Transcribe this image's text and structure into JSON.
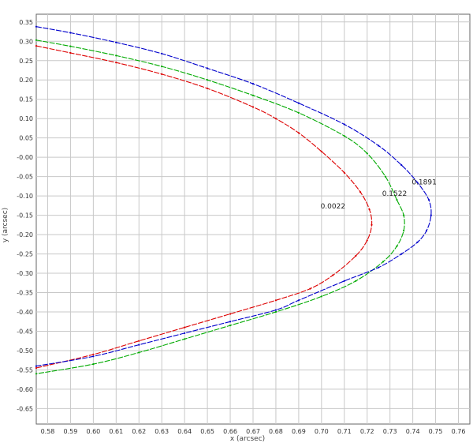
{
  "chart_data": {
    "type": "line",
    "title": "",
    "xlabel": "x (arcsec)",
    "ylabel": "y (arcsec)",
    "xlim": [
      0.575,
      0.765
    ],
    "ylim": [
      -0.69,
      0.37
    ],
    "grid": true,
    "legend": "none",
    "x_ticks": [
      0.58,
      0.59,
      0.6,
      0.61,
      0.62,
      0.63,
      0.64,
      0.65,
      0.66,
      0.67,
      0.68,
      0.69,
      0.7,
      0.71,
      0.72,
      0.73,
      0.74,
      0.75,
      0.76
    ],
    "x_tick_labels": [
      "0.58",
      "0.59",
      "0.60",
      "0.61",
      "0.62",
      "0.63",
      "0.64",
      "0.65",
      "0.66",
      "0.67",
      "0.68",
      "0.69",
      "0.70",
      "0.71",
      "0.72",
      "0.73",
      "0.74",
      "0.75",
      "0.76"
    ],
    "y_ticks": [
      0.35,
      0.3,
      0.25,
      0.2,
      0.15,
      0.1,
      0.05,
      0.0,
      -0.05,
      -0.1,
      -0.15,
      -0.2,
      -0.25,
      -0.3,
      -0.35,
      -0.4,
      -0.45,
      -0.5,
      -0.55,
      -0.6,
      -0.65
    ],
    "y_tick_labels": [
      "0.35",
      "0.30",
      "0.25",
      "0.20",
      "0.15",
      "0.10",
      "0.05",
      "-0.00",
      "-0.05",
      "-0.10",
      "-0.15",
      "-0.20",
      "-0.25",
      "-0.30",
      "-0.35",
      "-0.40",
      "-0.45",
      "-0.50",
      "-0.55",
      "-0.60",
      "-0.65"
    ],
    "series": [
      {
        "label": "0.0022",
        "color": "#dd0000",
        "points": [
          [
            0.575,
            0.288
          ],
          [
            0.59,
            0.27
          ],
          [
            0.61,
            0.245
          ],
          [
            0.63,
            0.215
          ],
          [
            0.65,
            0.178
          ],
          [
            0.67,
            0.13
          ],
          [
            0.68,
            0.1
          ],
          [
            0.69,
            0.063
          ],
          [
            0.7,
            0.015
          ],
          [
            0.71,
            -0.04
          ],
          [
            0.717,
            -0.09
          ],
          [
            0.721,
            -0.135
          ],
          [
            0.722,
            -0.175
          ],
          [
            0.72,
            -0.215
          ],
          [
            0.715,
            -0.255
          ],
          [
            0.705,
            -0.305
          ],
          [
            0.695,
            -0.34
          ],
          [
            0.68,
            -0.37
          ],
          [
            0.66,
            -0.405
          ],
          [
            0.64,
            -0.44
          ],
          [
            0.62,
            -0.475
          ],
          [
            0.6,
            -0.51
          ],
          [
            0.575,
            -0.545
          ]
        ]
      },
      {
        "label": "0.1522",
        "color": "#00aa00",
        "points": [
          [
            0.575,
            0.303
          ],
          [
            0.59,
            0.287
          ],
          [
            0.61,
            0.263
          ],
          [
            0.63,
            0.235
          ],
          [
            0.65,
            0.2
          ],
          [
            0.67,
            0.16
          ],
          [
            0.69,
            0.115
          ],
          [
            0.71,
            0.055
          ],
          [
            0.72,
            0.01
          ],
          [
            0.728,
            -0.05
          ],
          [
            0.733,
            -0.11
          ],
          [
            0.736,
            -0.15
          ],
          [
            0.736,
            -0.19
          ],
          [
            0.733,
            -0.23
          ],
          [
            0.727,
            -0.27
          ],
          [
            0.715,
            -0.32
          ],
          [
            0.7,
            -0.36
          ],
          [
            0.68,
            -0.4
          ],
          [
            0.66,
            -0.435
          ],
          [
            0.64,
            -0.47
          ],
          [
            0.62,
            -0.505
          ],
          [
            0.6,
            -0.535
          ],
          [
            0.575,
            -0.56
          ]
        ]
      },
      {
        "label": "0.1891",
        "color": "#0000cc",
        "points": [
          [
            0.575,
            0.338
          ],
          [
            0.59,
            0.322
          ],
          [
            0.61,
            0.297
          ],
          [
            0.63,
            0.268
          ],
          [
            0.65,
            0.23
          ],
          [
            0.67,
            0.19
          ],
          [
            0.69,
            0.14
          ],
          [
            0.71,
            0.085
          ],
          [
            0.725,
            0.03
          ],
          [
            0.735,
            -0.02
          ],
          [
            0.742,
            -0.065
          ],
          [
            0.747,
            -0.11
          ],
          [
            0.748,
            -0.15
          ],
          [
            0.746,
            -0.19
          ],
          [
            0.742,
            -0.22
          ],
          [
            0.735,
            -0.25
          ],
          [
            0.725,
            -0.285
          ],
          [
            0.71,
            -0.32
          ],
          [
            0.69,
            -0.37
          ],
          [
            0.68,
            -0.395
          ],
          [
            0.66,
            -0.425
          ],
          [
            0.64,
            -0.455
          ],
          [
            0.62,
            -0.485
          ],
          [
            0.6,
            -0.515
          ],
          [
            0.575,
            -0.54
          ]
        ]
      }
    ],
    "annotations": [
      {
        "text": "0.0022",
        "x": 0.705,
        "y": -0.132
      },
      {
        "text": "0.1522",
        "x": 0.732,
        "y": -0.1
      },
      {
        "text": "0.1891",
        "x": 0.745,
        "y": -0.07
      }
    ]
  }
}
